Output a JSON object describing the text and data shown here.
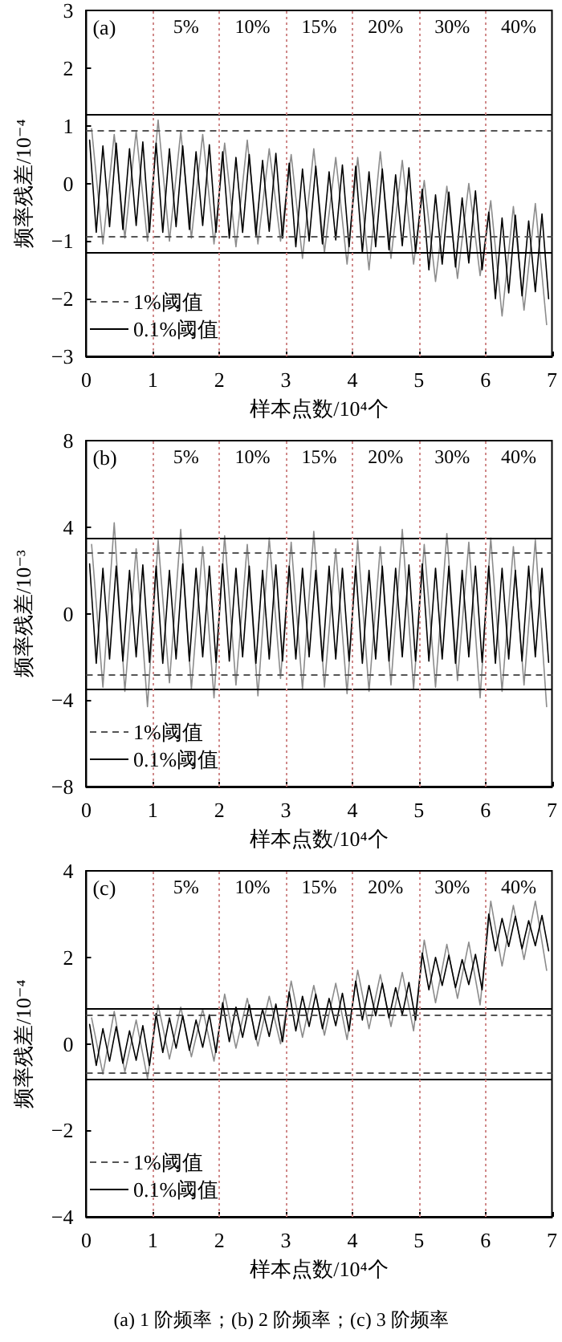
{
  "chart_data": [
    {
      "type": "line",
      "title": "(a)",
      "xlabel": "样本点数/10⁴个",
      "ylabel": "频率残差/10⁻⁴",
      "xlim": [
        0,
        7
      ],
      "xticks": [
        0,
        1,
        2,
        3,
        4,
        5,
        6,
        7
      ],
      "ylim": [
        -3,
        3
      ],
      "yticks": [
        -3,
        -2,
        -1,
        0,
        1,
        2,
        3
      ],
      "grid": false,
      "legend": "bottom left",
      "marker": "none",
      "line_style": "solid",
      "series": [
        {
          "color": "#8c8c8c",
          "x": [
            0.08,
            0.25,
            0.42,
            0.58,
            0.75,
            0.92,
            1.08,
            1.25,
            1.42,
            1.58,
            1.75,
            1.92,
            2.08,
            2.25,
            2.42,
            2.58,
            2.75,
            2.92,
            3.08,
            3.25,
            3.42,
            3.58,
            3.75,
            3.92,
            4.08,
            4.25,
            4.42,
            4.58,
            4.75,
            4.92,
            5.08,
            5.25,
            5.42,
            5.58,
            5.75,
            5.92,
            6.08,
            6.25,
            6.42,
            6.58,
            6.75,
            6.92
          ],
          "values": [
            0.95,
            -1.05,
            0.85,
            -0.95,
            0.9,
            -1.0,
            1.1,
            -1.0,
            0.9,
            -0.95,
            0.85,
            -1.05,
            0.7,
            -1.1,
            0.75,
            -1.05,
            0.6,
            -1.0,
            0.5,
            -1.3,
            0.6,
            -1.2,
            0.45,
            -1.4,
            0.45,
            -1.5,
            0.55,
            -1.3,
            0.4,
            -1.4,
            0.05,
            -1.7,
            -0.05,
            -1.65,
            0.0,
            -1.6,
            -0.3,
            -2.3,
            -0.4,
            -2.2,
            -0.35,
            -2.45
          ]
        },
        {
          "color": "#000000",
          "x": [
            0.05,
            0.15,
            0.25,
            0.35,
            0.45,
            0.55,
            0.65,
            0.75,
            0.85,
            0.95,
            1.05,
            1.15,
            1.25,
            1.35,
            1.45,
            1.55,
            1.65,
            1.75,
            1.85,
            1.95,
            2.05,
            2.15,
            2.25,
            2.35,
            2.45,
            2.55,
            2.65,
            2.75,
            2.85,
            2.95,
            3.05,
            3.15,
            3.25,
            3.35,
            3.45,
            3.55,
            3.65,
            3.75,
            3.85,
            3.95,
            4.05,
            4.15,
            4.25,
            4.35,
            4.45,
            4.55,
            4.65,
            4.75,
            4.85,
            4.95,
            5.05,
            5.15,
            5.25,
            5.35,
            5.45,
            5.55,
            5.65,
            5.75,
            5.85,
            5.95,
            6.05,
            6.15,
            6.25,
            6.35,
            6.45,
            6.55,
            6.65,
            6.75,
            6.85,
            6.95
          ],
          "values": [
            0.75,
            -0.85,
            0.65,
            -0.75,
            0.7,
            -0.8,
            0.6,
            -0.73,
            0.72,
            -0.85,
            0.7,
            -0.85,
            0.6,
            -0.75,
            0.65,
            -0.8,
            0.55,
            -0.73,
            0.67,
            -0.85,
            0.55,
            -0.95,
            0.45,
            -0.85,
            0.5,
            -0.9,
            0.4,
            -0.83,
            0.52,
            -0.95,
            0.35,
            -1.1,
            0.25,
            -1,
            0.3,
            -1.05,
            0.2,
            -0.98,
            0.32,
            -1.1,
            0.3,
            -1.2,
            0.2,
            -1.1,
            0.25,
            -1.15,
            0.15,
            -1.08,
            0.27,
            -1.2,
            -0.1,
            -1.5,
            -0.2,
            -1.4,
            -0.15,
            -1.45,
            -0.25,
            -1.38,
            -0.13,
            -1.5,
            -0.5,
            -2,
            -0.6,
            -1.9,
            -0.55,
            -1.95,
            -0.65,
            -1.88,
            -0.53,
            -2
          ]
        }
      ],
      "ref_lines": [
        {
          "axis": "y",
          "value": 0.93,
          "label": "1%阈值",
          "line_style": "dashed",
          "color": "#555555"
        },
        {
          "axis": "y",
          "value": -0.93,
          "line_style": "dashed",
          "color": "#555555"
        },
        {
          "axis": "y",
          "value": 1.2,
          "label": "0.1%阈值",
          "line_style": "solid",
          "color": "#000000"
        },
        {
          "axis": "y",
          "value": -1.2,
          "line_style": "solid",
          "color": "#000000"
        },
        {
          "axis": "x",
          "value": 1,
          "line_style": "dotted",
          "color": "#d08a8a"
        },
        {
          "axis": "x",
          "value": 2,
          "line_style": "dotted",
          "color": "#d08a8a"
        },
        {
          "axis": "x",
          "value": 3,
          "line_style": "dotted",
          "color": "#d08a8a"
        },
        {
          "axis": "x",
          "value": 4,
          "line_style": "dotted",
          "color": "#d08a8a"
        },
        {
          "axis": "x",
          "value": 5,
          "line_style": "dotted",
          "color": "#d08a8a"
        },
        {
          "axis": "x",
          "value": 6,
          "line_style": "dotted",
          "color": "#d08a8a"
        }
      ],
      "annotations": [
        "5%",
        "10%",
        "15%",
        "20%",
        "30%",
        "40%"
      ]
    },
    {
      "type": "line",
      "title": "(b)",
      "xlabel": "样本点数/10⁴个",
      "ylabel": "频率残差/10⁻³",
      "xlim": [
        0,
        7
      ],
      "xticks": [
        0,
        1,
        2,
        3,
        4,
        5,
        6,
        7
      ],
      "ylim": [
        -8,
        8
      ],
      "yticks": [
        -8,
        -4,
        0,
        4,
        8
      ],
      "grid": false,
      "legend": "bottom left",
      "marker": "none",
      "line_style": "solid",
      "series": [
        {
          "color": "#8c8c8c",
          "x": [
            0.08,
            0.25,
            0.42,
            0.58,
            0.75,
            0.92,
            1.08,
            1.25,
            1.42,
            1.58,
            1.75,
            1.92,
            2.08,
            2.25,
            2.42,
            2.58,
            2.75,
            2.92,
            3.08,
            3.25,
            3.42,
            3.58,
            3.75,
            3.92,
            4.08,
            4.25,
            4.42,
            4.58,
            4.75,
            4.92,
            5.08,
            5.25,
            5.42,
            5.58,
            5.75,
            5.92,
            6.08,
            6.25,
            6.42,
            6.58,
            6.75,
            6.92
          ],
          "values": [
            3.2,
            -3.4,
            4.2,
            -3.6,
            3.0,
            -4.3,
            3.4,
            -3.2,
            3.9,
            -3.5,
            3.1,
            -3.9,
            3.6,
            -3.3,
            3.2,
            -3.8,
            3.5,
            -3.0,
            3.3,
            -3.5,
            3.8,
            -3.4,
            3.0,
            -3.7,
            3.4,
            -3.6,
            3.1,
            -3.3,
            3.9,
            -3.5,
            3.2,
            -3.4,
            3.7,
            -3.1,
            3.3,
            -3.9,
            3.5,
            -3.6,
            3.1,
            -3.3,
            3.4,
            -4.3
          ]
        },
        {
          "color": "#000000",
          "x": [
            0.05,
            0.15,
            0.25,
            0.35,
            0.45,
            0.55,
            0.65,
            0.75,
            0.85,
            0.95,
            1.05,
            1.15,
            1.25,
            1.35,
            1.45,
            1.55,
            1.65,
            1.75,
            1.85,
            1.95,
            2.05,
            2.15,
            2.25,
            2.35,
            2.45,
            2.55,
            2.65,
            2.75,
            2.85,
            2.95,
            3.05,
            3.15,
            3.25,
            3.35,
            3.45,
            3.55,
            3.65,
            3.75,
            3.85,
            3.95,
            4.05,
            4.15,
            4.25,
            4.35,
            4.45,
            4.55,
            4.65,
            4.75,
            4.85,
            4.95,
            5.05,
            5.15,
            5.25,
            5.35,
            5.45,
            5.55,
            5.65,
            5.75,
            5.85,
            5.95,
            6.05,
            6.15,
            6.25,
            6.35,
            6.45,
            6.55,
            6.65,
            6.75,
            6.85,
            6.95
          ],
          "values": [
            2.3,
            -2.3,
            2.1,
            -2.1,
            2.2,
            -2.2,
            2.0,
            -2.0,
            2.25,
            -2.25,
            2.2,
            -2.3,
            2.0,
            -2.1,
            2.3,
            -2.2,
            2.1,
            -2.0,
            2.2,
            -2.25,
            2.3,
            -2.2,
            2.1,
            -2.0,
            2.2,
            -2.3,
            2.0,
            -2.1,
            2.25,
            -2.2,
            2.2,
            -2.1,
            2.1,
            -2.0,
            2.0,
            -2.2,
            2.2,
            -2.1,
            2.1,
            -2.2,
            2.2,
            -2.3,
            2.0,
            -2.1,
            2.2,
            -2.2,
            2.1,
            -2.0,
            2.25,
            -2.2,
            2.3,
            -2.2,
            2.1,
            -2.1,
            2.2,
            -2.3,
            2.0,
            -2.0,
            2.2,
            -2.25,
            2.2,
            -2.3,
            2.1,
            -2.1,
            2.0,
            -2.2,
            2.2,
            -2.0,
            2.1,
            -2.25
          ]
        }
      ],
      "ref_lines": [
        {
          "axis": "y",
          "value": 2.8,
          "label": "1%阈值",
          "line_style": "dashed",
          "color": "#555555"
        },
        {
          "axis": "y",
          "value": -2.8,
          "line_style": "dashed",
          "color": "#555555"
        },
        {
          "axis": "y",
          "value": 3.5,
          "label": "0.1%阈值",
          "line_style": "solid",
          "color": "#000000"
        },
        {
          "axis": "y",
          "value": -3.5,
          "line_style": "solid",
          "color": "#000000"
        },
        {
          "axis": "x",
          "value": 1,
          "line_style": "dotted",
          "color": "#d08a8a"
        },
        {
          "axis": "x",
          "value": 2,
          "line_style": "dotted",
          "color": "#d08a8a"
        },
        {
          "axis": "x",
          "value": 3,
          "line_style": "dotted",
          "color": "#d08a8a"
        },
        {
          "axis": "x",
          "value": 4,
          "line_style": "dotted",
          "color": "#d08a8a"
        },
        {
          "axis": "x",
          "value": 5,
          "line_style": "dotted",
          "color": "#d08a8a"
        },
        {
          "axis": "x",
          "value": 6,
          "line_style": "dotted",
          "color": "#d08a8a"
        }
      ],
      "annotations": [
        "5%",
        "10%",
        "15%",
        "20%",
        "30%",
        "40%"
      ]
    },
    {
      "type": "line",
      "title": "(c)",
      "xlabel": "样本点数/10⁴个",
      "ylabel": "频率残差/10⁻⁴",
      "xlim": [
        0,
        7
      ],
      "xticks": [
        0,
        1,
        2,
        3,
        4,
        5,
        6,
        7
      ],
      "ylim": [
        -4,
        4
      ],
      "yticks": [
        -4,
        -2,
        0,
        2,
        4
      ],
      "grid": false,
      "legend": "bottom left",
      "marker": "none",
      "line_style": "solid",
      "series": [
        {
          "color": "#8c8c8c",
          "x": [
            0.08,
            0.25,
            0.42,
            0.58,
            0.75,
            0.92,
            1.08,
            1.25,
            1.42,
            1.58,
            1.75,
            1.92,
            2.08,
            2.25,
            2.42,
            2.58,
            2.75,
            2.92,
            3.08,
            3.25,
            3.42,
            3.58,
            3.75,
            3.92,
            4.08,
            4.25,
            4.42,
            4.58,
            4.75,
            4.92,
            5.08,
            5.25,
            5.42,
            5.58,
            5.75,
            5.92,
            6.08,
            6.25,
            6.42,
            6.58,
            6.75,
            6.92
          ],
          "values": [
            0.6,
            -0.7,
            0.75,
            -0.65,
            0.55,
            -0.8,
            0.9,
            -0.35,
            0.85,
            -0.3,
            0.8,
            -0.4,
            1.15,
            -0.1,
            1.05,
            -0.05,
            1.1,
            0.0,
            1.45,
            0.15,
            1.35,
            0.2,
            1.4,
            0.1,
            1.7,
            0.35,
            1.6,
            0.4,
            1.65,
            0.3,
            2.4,
            0.95,
            2.3,
            1.05,
            2.35,
            0.9,
            3.3,
            1.8,
            3.2,
            1.95,
            3.3,
            1.7
          ]
        },
        {
          "color": "#000000",
          "x": [
            0.05,
            0.15,
            0.25,
            0.35,
            0.45,
            0.55,
            0.65,
            0.75,
            0.85,
            0.95,
            1.05,
            1.15,
            1.25,
            1.35,
            1.45,
            1.55,
            1.65,
            1.75,
            1.85,
            1.95,
            2.05,
            2.15,
            2.25,
            2.35,
            2.45,
            2.55,
            2.65,
            2.75,
            2.85,
            2.95,
            3.05,
            3.15,
            3.25,
            3.35,
            3.45,
            3.55,
            3.65,
            3.75,
            3.85,
            3.95,
            4.05,
            4.15,
            4.25,
            4.35,
            4.45,
            4.55,
            4.65,
            4.75,
            4.85,
            4.95,
            5.05,
            5.15,
            5.25,
            5.35,
            5.45,
            5.55,
            5.65,
            5.75,
            5.85,
            5.95,
            6.05,
            6.15,
            6.25,
            6.35,
            6.45,
            6.55,
            6.65,
            6.75,
            6.85,
            6.95
          ],
          "values": [
            0.45,
            -0.5,
            0.35,
            -0.4,
            0.4,
            -0.45,
            0.3,
            -0.38,
            0.42,
            -0.5,
            0.7,
            -0.2,
            0.6,
            -0.1,
            0.65,
            -0.15,
            0.55,
            -0.08,
            0.67,
            -0.2,
            0.95,
            0.05,
            0.85,
            0.15,
            0.9,
            0.1,
            0.8,
            0.17,
            0.92,
            0.05,
            1.2,
            0.3,
            1.1,
            0.4,
            1.15,
            0.35,
            1.05,
            0.42,
            1.17,
            0.3,
            1.45,
            0.55,
            1.35,
            0.65,
            1.4,
            0.6,
            1.3,
            0.67,
            1.42,
            0.55,
            2.1,
            1.25,
            2,
            1.35,
            2.05,
            1.3,
            1.95,
            1.37,
            2.07,
            1.25,
            3,
            2.15,
            2.9,
            2.25,
            2.95,
            2.2,
            2.85,
            2.27,
            2.97,
            2.15
          ]
        }
      ],
      "ref_lines": [
        {
          "axis": "y",
          "value": 0.65,
          "label": "1%阈值",
          "line_style": "dashed",
          "color": "#555555"
        },
        {
          "axis": "y",
          "value": -0.65,
          "line_style": "dashed",
          "color": "#555555"
        },
        {
          "axis": "y",
          "value": 0.8,
          "label": "0.1%阈值",
          "line_style": "solid",
          "color": "#000000"
        },
        {
          "axis": "y",
          "value": -0.8,
          "line_style": "solid",
          "color": "#000000"
        },
        {
          "axis": "x",
          "value": 1,
          "line_style": "dotted",
          "color": "#d08a8a"
        },
        {
          "axis": "x",
          "value": 2,
          "line_style": "dotted",
          "color": "#d08a8a"
        },
        {
          "axis": "x",
          "value": 3,
          "line_style": "dotted",
          "color": "#d08a8a"
        },
        {
          "axis": "x",
          "value": 4,
          "line_style": "dotted",
          "color": "#d08a8a"
        },
        {
          "axis": "x",
          "value": 5,
          "line_style": "dotted",
          "color": "#d08a8a"
        },
        {
          "axis": "x",
          "value": 6,
          "line_style": "dotted",
          "color": "#d08a8a"
        }
      ],
      "annotations": [
        "5%",
        "10%",
        "15%",
        "20%",
        "30%",
        "40%",
        "(a) 1 阶频率；(b) 2 阶频率；(c) 3 阶频率"
      ]
    }
  ]
}
